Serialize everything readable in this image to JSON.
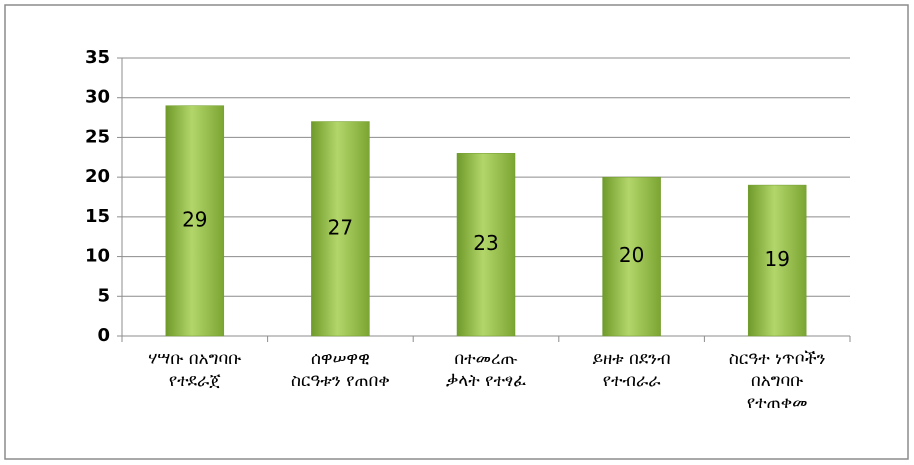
{
  "chart_data": {
    "type": "bar",
    "categories": [
      "ሃሣቡ በአግባቡ\nየተደራጀ",
      "ሰዋሠዋዊ\nስርዓቱን የጠበቀ",
      "በተመረጡ\nቃላት የተፃፈ",
      "ይዘቱ በደንብ\nየተብራራ",
      "ስርዓተ ነጥቦችን\nበአግባቡ\nየተጠቀመ"
    ],
    "values": [
      29,
      27,
      23,
      20,
      19
    ],
    "color": "#8db73e",
    "ylim": [
      0,
      35
    ],
    "yticks": [
      0,
      5,
      10,
      15,
      20,
      25,
      30,
      35
    ],
    "grid": true
  }
}
